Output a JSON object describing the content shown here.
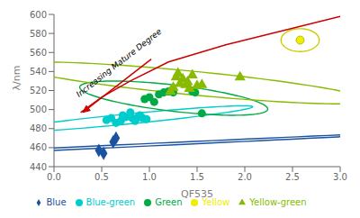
{
  "chart_data": {
    "type": "scatter",
    "title": "",
    "xlabel": "QF535",
    "ylabel": "λ/nm",
    "xlim": [
      0,
      3
    ],
    "ylim": [
      440,
      600
    ],
    "xticks": [
      {
        "value": 0,
        "label": "0.0"
      },
      0.5,
      {
        "value": 1,
        "label": "1.0"
      },
      1.5,
      {
        "value": 2,
        "label": "2.0"
      },
      2.5,
      {
        "value": 3,
        "label": "3.0"
      }
    ],
    "yticks": [
      440,
      460,
      480,
      500,
      520,
      540,
      560,
      580,
      600
    ],
    "legend": "bottom",
    "series": [
      {
        "name": "Blue",
        "color": "#1a52a0",
        "marker": "diamond",
        "x": [
          0.47,
          0.52,
          0.62,
          0.65
        ],
        "y": [
          457,
          454,
          466,
          470
        ],
        "ellipse": {
          "cx": 0.565,
          "cy": 461,
          "width_x": 0.27,
          "width_y": 18,
          "angle": -12,
          "color": "#1a52a0"
        }
      },
      {
        "name": "Blue-green",
        "color": "#00cccc",
        "marker": "circle",
        "x": [
          0.55,
          0.6,
          0.65,
          0.7,
          0.72,
          0.75,
          0.8,
          0.82,
          0.85,
          0.88,
          0.9,
          0.93,
          0.97
        ],
        "y": [
          489,
          491,
          486,
          488,
          494,
          492,
          497,
          491,
          488,
          492,
          494,
          491,
          490
        ],
        "ellipse": {
          "cx": 0.765,
          "cy": 490,
          "width_x": 0.5,
          "width_y": 14,
          "angle": -5,
          "color": "#00cccc"
        }
      },
      {
        "name": "Green",
        "color": "#00aa44",
        "marker": "circle",
        "x": [
          0.95,
          1.0,
          1.05,
          1.1,
          1.15,
          1.2,
          1.25,
          1.45,
          1.48,
          1.55
        ],
        "y": [
          511,
          513,
          508,
          516,
          518,
          519,
          518,
          519,
          518,
          496
        ],
        "ellipse": {
          "cx": 1.255,
          "cy": 512,
          "width_x": 0.76,
          "width_y": 18,
          "angle": 2,
          "color": "#00aa44"
        }
      },
      {
        "name": "Yellow-green",
        "color": "#88bb00",
        "marker": "triangle",
        "x": [
          1.22,
          1.25,
          1.28,
          1.3,
          1.32,
          1.35,
          1.38,
          1.4,
          1.42,
          1.45,
          1.5,
          1.55,
          1.95
        ],
        "y": [
          519,
          523,
          534,
          538,
          527,
          532,
          526,
          529,
          522,
          536,
          525,
          526,
          534
        ],
        "ellipse": {
          "cx": 1.44,
          "cy": 528,
          "width_x": 1.05,
          "width_y": 22,
          "angle": 4,
          "color": "#88bb00"
        }
      },
      {
        "name": "Yellow",
        "color": "#eeee00",
        "edge_color": "#aaaa00",
        "marker": "circle",
        "x": [
          2.58
        ],
        "y": [
          573
        ],
        "ellipse": {
          "cx": 2.58,
          "cy": 573,
          "width_x": 0.2,
          "width_y": 12,
          "angle": 0,
          "color": "#cccc00"
        }
      }
    ],
    "curve": {
      "x": [
        0.28,
        0.5,
        0.8,
        1.2,
        1.8,
        2.4,
        3.0
      ],
      "y": [
        497,
        513,
        530,
        550,
        568,
        583,
        598
      ],
      "color": "#cc0000"
    },
    "arrow": {
      "x": [
        1.02,
        0.3
      ],
      "y": [
        553,
        497
      ],
      "color": "#cc0000"
    },
    "annotations": [
      {
        "text": "Increasing Mature Degree",
        "x": 0.68,
        "y": 549
      }
    ]
  }
}
